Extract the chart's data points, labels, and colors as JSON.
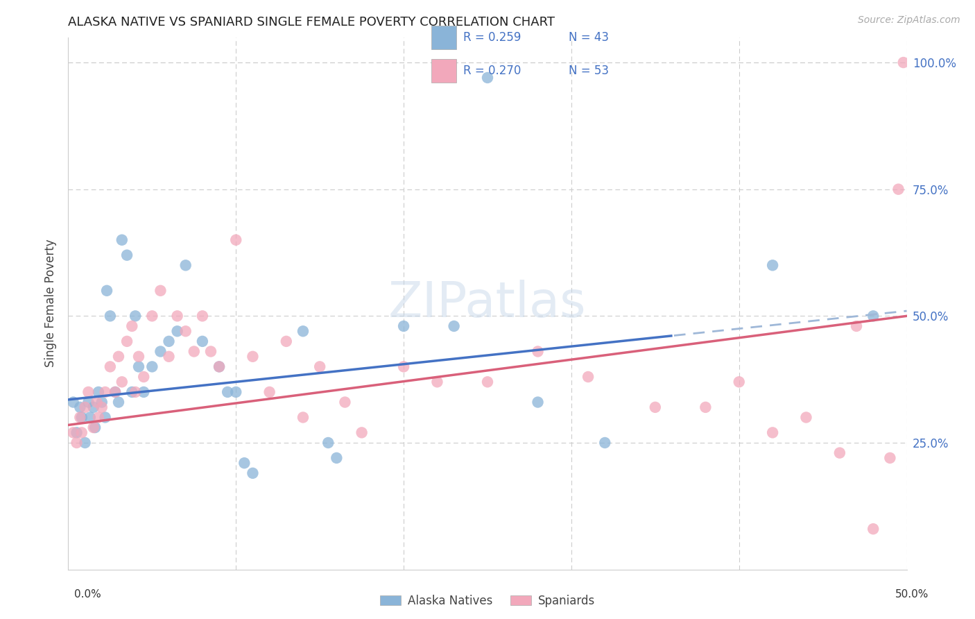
{
  "title": "ALASKA NATIVE VS SPANIARD SINGLE FEMALE POVERTY CORRELATION CHART",
  "source": "Source: ZipAtlas.com",
  "ylabel": "Single Female Poverty",
  "xlim": [
    0.0,
    0.5
  ],
  "ylim": [
    0.0,
    1.05
  ],
  "watermark": "ZIPatlas",
  "legend_blue_r": "R = 0.259",
  "legend_blue_n": "N = 43",
  "legend_pink_r": "R = 0.270",
  "legend_pink_n": "N = 53",
  "legend_label_blue": "Alaska Natives",
  "legend_label_pink": "Spaniards",
  "blue_color": "#8ab4d8",
  "pink_color": "#f2a8bb",
  "line_blue": "#4472c4",
  "line_pink": "#d9607a",
  "blue_r": 0.259,
  "blue_n": 43,
  "pink_r": 0.27,
  "pink_n": 53,
  "alaska_x": [
    0.003,
    0.005,
    0.007,
    0.008,
    0.01,
    0.012,
    0.013,
    0.015,
    0.016,
    0.018,
    0.02,
    0.022,
    0.023,
    0.025,
    0.028,
    0.03,
    0.032,
    0.035,
    0.038,
    0.04,
    0.042,
    0.045,
    0.05,
    0.055,
    0.06,
    0.065,
    0.07,
    0.08,
    0.09,
    0.095,
    0.1,
    0.105,
    0.11,
    0.14,
    0.155,
    0.16,
    0.2,
    0.23,
    0.25,
    0.28,
    0.32,
    0.42,
    0.48
  ],
  "alaska_y": [
    0.33,
    0.27,
    0.32,
    0.3,
    0.25,
    0.33,
    0.3,
    0.32,
    0.28,
    0.35,
    0.33,
    0.3,
    0.55,
    0.5,
    0.35,
    0.33,
    0.65,
    0.62,
    0.35,
    0.5,
    0.4,
    0.35,
    0.4,
    0.43,
    0.45,
    0.47,
    0.6,
    0.45,
    0.4,
    0.35,
    0.35,
    0.21,
    0.19,
    0.47,
    0.25,
    0.22,
    0.48,
    0.48,
    0.97,
    0.33,
    0.25,
    0.6,
    0.5
  ],
  "spaniard_x": [
    0.003,
    0.005,
    0.007,
    0.008,
    0.01,
    0.012,
    0.015,
    0.017,
    0.018,
    0.02,
    0.022,
    0.025,
    0.028,
    0.03,
    0.032,
    0.035,
    0.038,
    0.04,
    0.042,
    0.045,
    0.05,
    0.055,
    0.06,
    0.065,
    0.07,
    0.075,
    0.08,
    0.085,
    0.09,
    0.1,
    0.11,
    0.12,
    0.13,
    0.14,
    0.15,
    0.165,
    0.175,
    0.2,
    0.22,
    0.25,
    0.28,
    0.31,
    0.35,
    0.38,
    0.4,
    0.42,
    0.44,
    0.46,
    0.47,
    0.48,
    0.49,
    0.495,
    0.498
  ],
  "spaniard_y": [
    0.27,
    0.25,
    0.3,
    0.27,
    0.32,
    0.35,
    0.28,
    0.33,
    0.3,
    0.32,
    0.35,
    0.4,
    0.35,
    0.42,
    0.37,
    0.45,
    0.48,
    0.35,
    0.42,
    0.38,
    0.5,
    0.55,
    0.42,
    0.5,
    0.47,
    0.43,
    0.5,
    0.43,
    0.4,
    0.65,
    0.42,
    0.35,
    0.45,
    0.3,
    0.4,
    0.33,
    0.27,
    0.4,
    0.37,
    0.37,
    0.43,
    0.38,
    0.32,
    0.32,
    0.37,
    0.27,
    0.3,
    0.23,
    0.48,
    0.08,
    0.22,
    0.75,
    1.0
  ]
}
